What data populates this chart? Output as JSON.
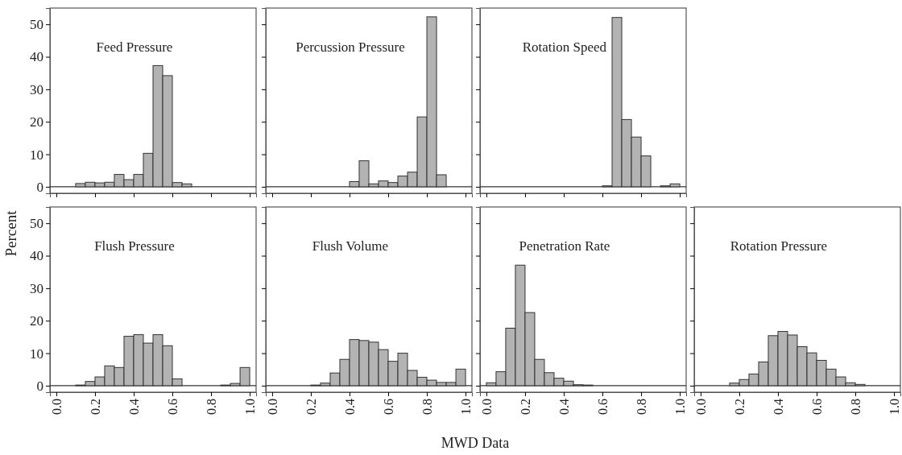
{
  "chart_data": [
    {
      "type": "histogram",
      "title": "Feed Pressure",
      "ylabel": "Percent",
      "bins": [
        0.1,
        0.15,
        0.2,
        0.25,
        0.3,
        0.35,
        0.4,
        0.45,
        0.5,
        0.55,
        0.6,
        0.65,
        0.7
      ],
      "values": [
        1.0,
        1.4,
        1.2,
        1.4,
        3.8,
        2.2,
        3.8,
        10.3,
        37.3,
        34.2,
        1.3,
        0.9
      ],
      "color": "#b3b3b3",
      "xlim": [
        -0.033,
        1.033
      ],
      "ylim": [
        -2,
        55
      ],
      "xticks": [
        {
          "value": 0,
          "label": null
        },
        {
          "value": 0.2,
          "label": null
        },
        {
          "value": 0.4,
          "label": null
        },
        {
          "value": 0.6,
          "label": null
        },
        {
          "value": 0.8,
          "label": null
        },
        {
          "value": 1,
          "label": null
        }
      ],
      "yticks": [
        0,
        10,
        20,
        30,
        40,
        50
      ],
      "tick_labels": "y",
      "ref_lines": [
        {
          "axis": "y",
          "value": 0
        }
      ]
    },
    {
      "type": "histogram",
      "title": "Percussion Pressure",
      "bins": [
        0.4,
        0.45,
        0.5,
        0.55,
        0.6,
        0.65,
        0.7,
        0.75,
        0.8,
        0.85,
        0.9
      ],
      "values": [
        1.6,
        8.0,
        0.9,
        1.8,
        1.3,
        3.3,
        4.5,
        21.5,
        52.3,
        3.7
      ],
      "color": "#b3b3b3",
      "xlim": [
        -0.033,
        1.033
      ],
      "ylim": [
        -2,
        55
      ],
      "xticks": [
        {
          "value": 0,
          "label": null
        },
        {
          "value": 0.2,
          "label": null
        },
        {
          "value": 0.4,
          "label": null
        },
        {
          "value": 0.6,
          "label": null
        },
        {
          "value": 0.8,
          "label": null
        },
        {
          "value": 1,
          "label": null
        }
      ],
      "yticks": [
        0,
        10,
        20,
        30,
        40,
        50
      ],
      "tick_labels": false,
      "ref_lines": [
        {
          "axis": "y",
          "value": 0
        }
      ]
    },
    {
      "type": "histogram",
      "title": "Rotation Speed",
      "bins": [
        0.6,
        0.65,
        0.7,
        0.75,
        0.8,
        0.85,
        0.9,
        0.95,
        1.0
      ],
      "values": [
        0.3,
        52.1,
        20.7,
        15.3,
        9.5,
        0,
        0.3,
        0.9
      ],
      "color": "#b3b3b3",
      "xlim": [
        -0.033,
        1.033
      ],
      "ylim": [
        -2,
        55
      ],
      "xticks": [
        {
          "value": 0,
          "label": null
        },
        {
          "value": 0.2,
          "label": null
        },
        {
          "value": 0.4,
          "label": null
        },
        {
          "value": 0.6,
          "label": null
        },
        {
          "value": 0.8,
          "label": null
        },
        {
          "value": 1,
          "label": null
        }
      ],
      "yticks": [
        0,
        10,
        20,
        30,
        40,
        50
      ],
      "tick_labels": false,
      "ref_lines": [
        {
          "axis": "y",
          "value": 0
        }
      ]
    },
    {
      "type": "histogram",
      "title": "Flush Pressure",
      "bins": [
        0.1,
        0.15,
        0.2,
        0.25,
        0.3,
        0.35,
        0.4,
        0.45,
        0.5,
        0.55,
        0.6,
        0.65,
        0.7,
        0.75,
        0.8,
        0.85,
        0.9,
        0.95,
        1.0
      ],
      "values": [
        0.2,
        1.3,
        2.7,
        6.1,
        5.6,
        15.2,
        15.7,
        13.1,
        15.7,
        12.3,
        2.1,
        0,
        0,
        0,
        0,
        0.2,
        0.7,
        5.6
      ],
      "color": "#b3b3b3",
      "xlim": [
        -0.033,
        1.033
      ],
      "ylim": [
        -2,
        55
      ],
      "xticks": [
        {
          "value": 0,
          "label": "0.0"
        },
        {
          "value": 0.2,
          "label": "0.2"
        },
        {
          "value": 0.4,
          "label": "0.4"
        },
        {
          "value": 0.6,
          "label": "0.6"
        },
        {
          "value": 0.8,
          "label": "0.8"
        },
        {
          "value": 1,
          "label": "1.0"
        }
      ],
      "yticks": [
        0,
        10,
        20,
        30,
        40,
        50
      ],
      "ref_lines": [
        {
          "axis": "y",
          "value": 0
        }
      ]
    },
    {
      "type": "histogram",
      "title": "Flush Volume",
      "xlabel": "MWD Data",
      "bins": [
        0.2,
        0.25,
        0.3,
        0.35,
        0.4,
        0.45,
        0.5,
        0.55,
        0.6,
        0.65,
        0.7,
        0.75,
        0.8,
        0.85,
        0.9,
        0.95,
        1.0
      ],
      "values": [
        0.2,
        0.8,
        3.9,
        8.1,
        14.2,
        13.9,
        13.4,
        11.1,
        7.5,
        10.0,
        4.7,
        2.6,
        1.7,
        1.0,
        1.0,
        5.1
      ],
      "color": "#b3b3b3",
      "xlim": [
        -0.033,
        1.033
      ],
      "ylim": [
        -2,
        55
      ],
      "xticks": [
        {
          "value": 0,
          "label": "0.0"
        },
        {
          "value": 0.2,
          "label": "0.2"
        },
        {
          "value": 0.4,
          "label": "0.4"
        },
        {
          "value": 0.6,
          "label": "0.6"
        },
        {
          "value": 0.8,
          "label": "0.8"
        },
        {
          "value": 1,
          "label": "1.0"
        }
      ],
      "yticks": [
        0,
        10,
        20,
        30,
        40,
        50
      ],
      "tick_labels": "x",
      "ref_lines": [
        {
          "axis": "y",
          "value": 0
        }
      ]
    },
    {
      "type": "histogram",
      "title": "Penetration Rate",
      "bins": [
        0,
        0.05,
        0.1,
        0.15,
        0.2,
        0.25,
        0.3,
        0.35,
        0.4,
        0.45,
        0.5,
        0.55
      ],
      "values": [
        0.9,
        4.3,
        17.7,
        37.1,
        22.5,
        8.1,
        4.0,
        2.3,
        1.4,
        0.3,
        0.2
      ],
      "color": "#b3b3b3",
      "xlim": [
        -0.033,
        1.033
      ],
      "ylim": [
        -2,
        55
      ],
      "xticks": [
        {
          "value": 0,
          "label": "0.0"
        },
        {
          "value": 0.2,
          "label": "0.2"
        },
        {
          "value": 0.4,
          "label": "0.4"
        },
        {
          "value": 0.6,
          "label": "0.6"
        },
        {
          "value": 0.8,
          "label": "0.8"
        },
        {
          "value": 1,
          "label": "1.0"
        }
      ],
      "yticks": [
        0,
        10,
        20,
        30,
        40,
        50
      ],
      "tick_labels": "x",
      "ref_lines": [
        {
          "axis": "y",
          "value": 0
        }
      ]
    },
    {
      "type": "histogram",
      "title": "Rotation Pressure",
      "bins": [
        0.15,
        0.2,
        0.25,
        0.3,
        0.35,
        0.4,
        0.45,
        0.5,
        0.55,
        0.6,
        0.65,
        0.7,
        0.75,
        0.8,
        0.85
      ],
      "values": [
        0.8,
        1.9,
        3.6,
        7.3,
        15.4,
        16.7,
        15.6,
        12.0,
        10.1,
        7.8,
        5.1,
        2.7,
        0.9,
        0.4
      ],
      "color": "#b3b3b3",
      "xlim": [
        -0.033,
        1.033
      ],
      "ylim": [
        -2,
        55
      ],
      "xticks": [
        {
          "value": 0,
          "label": "0.0"
        },
        {
          "value": 0.2,
          "label": "0.2"
        },
        {
          "value": 0.4,
          "label": "0.4"
        },
        {
          "value": 0.6,
          "label": "0.6"
        },
        {
          "value": 0.8,
          "label": "0.8"
        },
        {
          "value": 1,
          "label": "1.0"
        }
      ],
      "yticks": [
        0,
        10,
        20,
        30,
        40,
        50
      ],
      "tick_labels": "x",
      "ref_lines": [
        {
          "axis": "y",
          "value": 0
        }
      ]
    }
  ]
}
